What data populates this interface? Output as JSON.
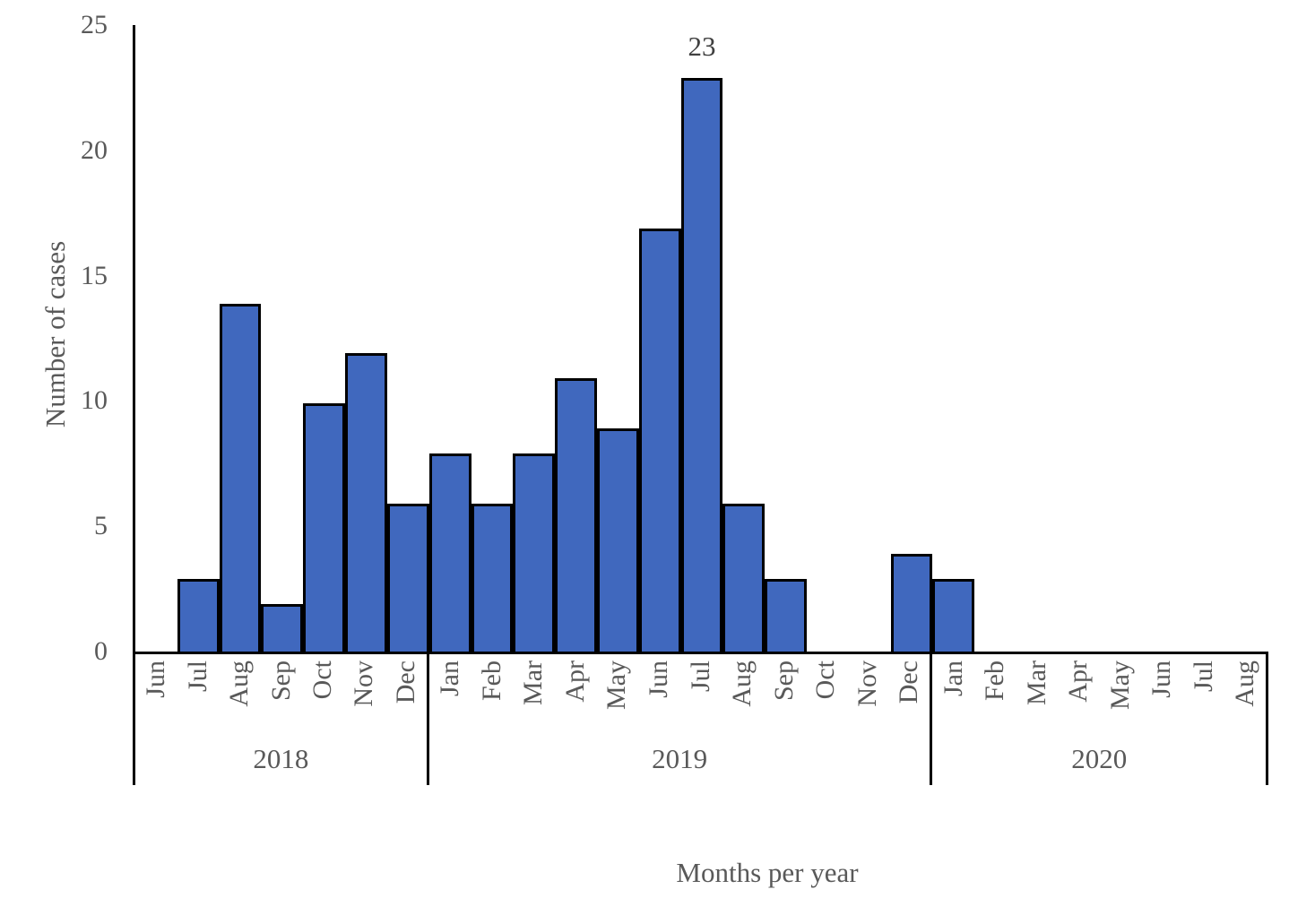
{
  "chart_data": {
    "type": "bar",
    "title": "",
    "xlabel": "Months per year",
    "ylabel": "Number of cases",
    "ylim": [
      0,
      25
    ],
    "yticks": [
      0,
      5,
      10,
      15,
      20,
      25
    ],
    "grid": false,
    "legend": false,
    "categories": [
      "Jun",
      "Jul",
      "Aug",
      "Sep",
      "Oct",
      "Nov",
      "Dec",
      "Jan",
      "Feb",
      "Mar",
      "Apr",
      "May",
      "Jun",
      "Jul",
      "Aug",
      "Sep",
      "Oct",
      "Nov",
      "Dec",
      "Jan",
      "Feb",
      "Mar",
      "Apr",
      "May",
      "Jun",
      "Jul",
      "Aug"
    ],
    "values": [
      0,
      3,
      14,
      2,
      10,
      12,
      6,
      8,
      6,
      8,
      11,
      9,
      17,
      23,
      6,
      3,
      0,
      0,
      4,
      3,
      0,
      0,
      0,
      0,
      0,
      0,
      0
    ],
    "groups": [
      {
        "label": "2018",
        "start": 0,
        "count": 7
      },
      {
        "label": "2019",
        "start": 7,
        "count": 12
      },
      {
        "label": "2020",
        "start": 19,
        "count": 8
      }
    ],
    "data_labels": [
      {
        "index": 13,
        "text": "23"
      }
    ],
    "colors": {
      "bar_fill": "#4068BE",
      "bar_border": "#000000",
      "axis": "#000000",
      "tick_text": "#595959",
      "data_label_text": "#404040"
    }
  }
}
